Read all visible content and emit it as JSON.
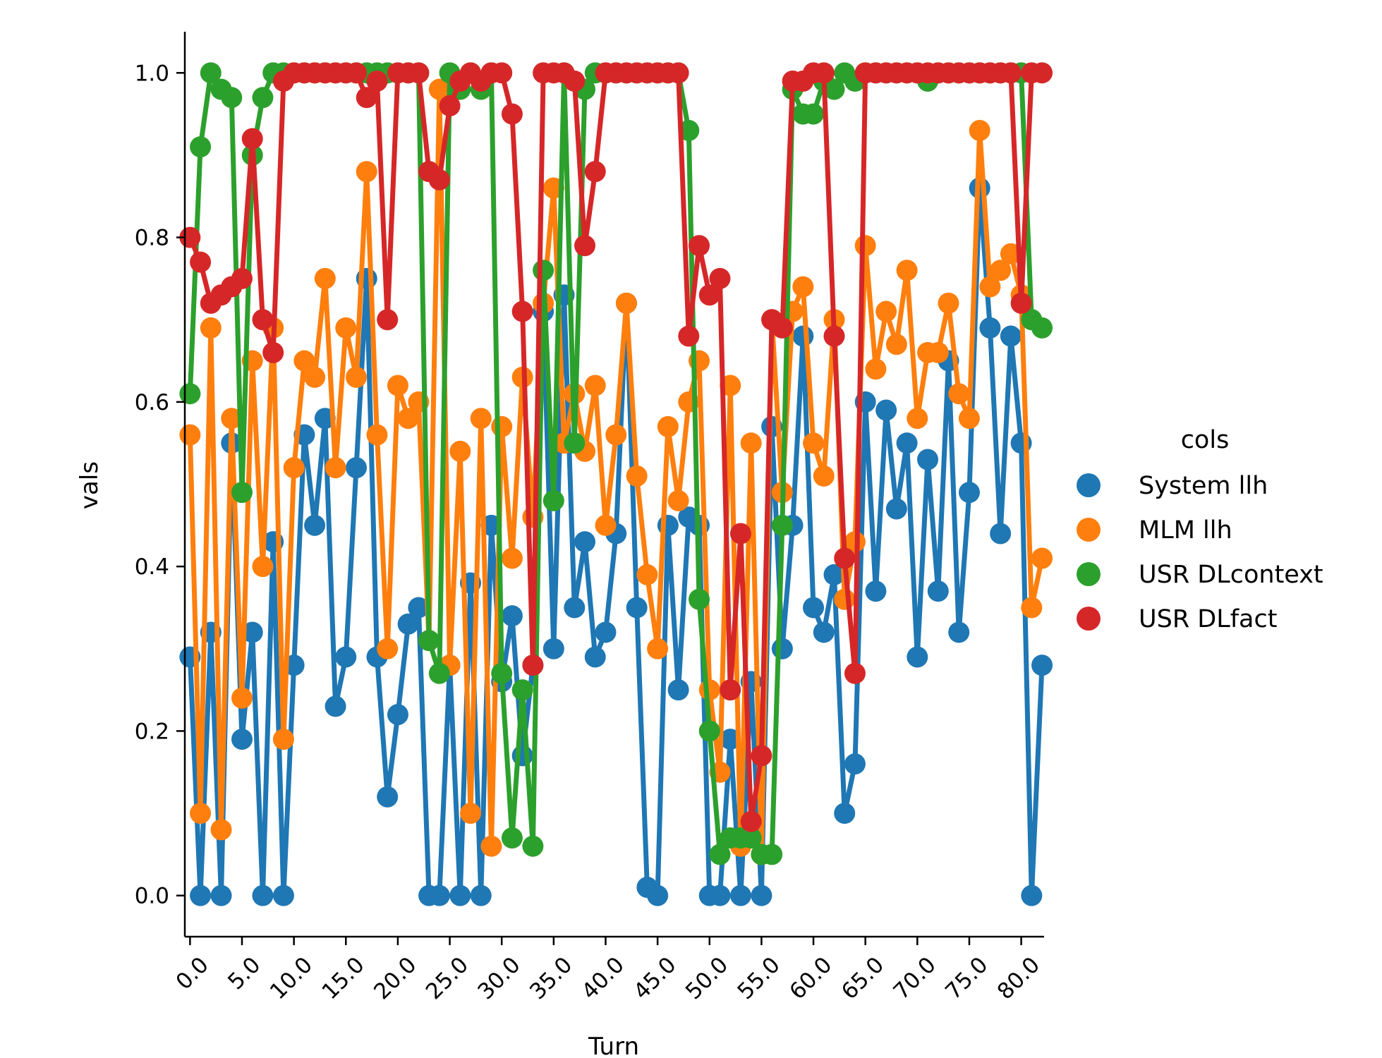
{
  "chart_data": {
    "type": "line",
    "xlabel": "Turn",
    "ylabel": "vals",
    "legend_title": "cols",
    "legend_placement": "right",
    "xlim": [
      -0.5,
      82.2
    ],
    "ylim": [
      -0.05,
      1.05
    ],
    "x_ticks": [
      0,
      5,
      10,
      15,
      20,
      25,
      30,
      35,
      40,
      45,
      50,
      55,
      60,
      65,
      70,
      75,
      80
    ],
    "x_tick_labels": [
      "0.0",
      "5.0",
      "10.0",
      "15.0",
      "20.0",
      "25.0",
      "30.0",
      "35.0",
      "40.0",
      "45.0",
      "50.0",
      "55.0",
      "60.0",
      "65.0",
      "70.0",
      "75.0",
      "80.0"
    ],
    "y_ticks": [
      0.0,
      0.2,
      0.4,
      0.6,
      0.8,
      1.0
    ],
    "y_tick_labels": [
      "0.0",
      "0.2",
      "0.4",
      "0.6",
      "0.8",
      "1.0"
    ],
    "grid": false,
    "series": [
      {
        "name": "System llh",
        "color": "#1f77b4",
        "values": [
          0.29,
          0.0,
          0.32,
          0.0,
          0.55,
          0.19,
          0.32,
          0.0,
          0.43,
          0.0,
          0.28,
          0.56,
          0.45,
          0.58,
          0.23,
          0.29,
          0.52,
          0.75,
          0.29,
          0.12,
          0.22,
          0.33,
          0.35,
          0.0,
          0.0,
          0.28,
          0.0,
          0.38,
          0.0,
          0.45,
          0.26,
          0.34,
          0.17,
          0.28,
          0.71,
          0.3,
          0.73,
          0.35,
          0.43,
          0.29,
          0.32,
          0.44,
          0.72,
          0.35,
          0.01,
          0.0,
          0.45,
          0.25,
          0.46,
          0.45,
          0.0,
          0.0,
          0.19,
          0.0,
          0.26,
          0.0,
          0.57,
          0.3,
          0.45,
          0.68,
          0.35,
          0.32,
          0.39,
          0.1,
          0.16,
          0.6,
          0.37,
          0.59,
          0.47,
          0.55,
          0.29,
          0.53,
          0.37,
          0.65,
          0.32,
          0.49,
          0.86,
          0.69,
          0.44,
          0.68,
          0.55,
          0.0,
          0.28
        ]
      },
      {
        "name": "MLM llh",
        "color": "#ff7f0e",
        "values": [
          0.56,
          0.1,
          0.69,
          0.08,
          0.58,
          0.24,
          0.65,
          0.4,
          0.69,
          0.19,
          0.52,
          0.65,
          0.63,
          0.75,
          0.52,
          0.69,
          0.63,
          0.88,
          0.56,
          0.3,
          0.62,
          0.58,
          0.6,
          0.31,
          0.98,
          0.28,
          0.54,
          0.1,
          0.58,
          0.06,
          0.57,
          0.41,
          0.63,
          0.46,
          0.72,
          0.86,
          0.55,
          0.61,
          0.54,
          0.62,
          0.45,
          0.56,
          0.72,
          0.51,
          0.39,
          0.3,
          0.57,
          0.48,
          0.6,
          0.65,
          0.25,
          0.15,
          0.62,
          0.06,
          0.55,
          0.05,
          0.7,
          0.49,
          0.71,
          0.74,
          0.55,
          0.51,
          0.7,
          0.36,
          0.43,
          0.79,
          0.64,
          0.71,
          0.67,
          0.76,
          0.58,
          0.66,
          0.66,
          0.72,
          0.61,
          0.58,
          0.93,
          0.74,
          0.76,
          0.78,
          0.73,
          0.35,
          0.41
        ]
      },
      {
        "name": "USR DLcontext",
        "color": "#2ca02c",
        "values": [
          0.61,
          0.91,
          1.0,
          0.98,
          0.97,
          0.49,
          0.9,
          0.97,
          1.0,
          1.0,
          1.0,
          1.0,
          1.0,
          1.0,
          1.0,
          1.0,
          1.0,
          1.0,
          1.0,
          1.0,
          1.0,
          1.0,
          1.0,
          0.31,
          0.27,
          1.0,
          0.98,
          1.0,
          0.98,
          1.0,
          0.27,
          0.07,
          0.25,
          0.06,
          0.76,
          0.48,
          1.0,
          0.55,
          0.98,
          1.0,
          1.0,
          1.0,
          1.0,
          1.0,
          1.0,
          1.0,
          1.0,
          1.0,
          0.93,
          0.36,
          0.2,
          0.05,
          0.07,
          0.07,
          0.07,
          0.05,
          0.05,
          0.45,
          0.98,
          0.95,
          0.95,
          0.99,
          0.98,
          1.0,
          0.99,
          1.0,
          1.0,
          1.0,
          1.0,
          1.0,
          1.0,
          0.99,
          1.0,
          1.0,
          1.0,
          1.0,
          1.0,
          1.0,
          1.0,
          1.0,
          1.0,
          0.7,
          0.69
        ]
      },
      {
        "name": "USR DLfact",
        "color": "#d62728",
        "values": [
          0.8,
          0.77,
          0.72,
          0.73,
          0.74,
          0.75,
          0.92,
          0.7,
          0.66,
          0.99,
          1.0,
          1.0,
          1.0,
          1.0,
          1.0,
          1.0,
          1.0,
          0.97,
          0.99,
          0.7,
          1.0,
          1.0,
          1.0,
          0.88,
          0.87,
          0.96,
          0.99,
          1.0,
          0.99,
          1.0,
          1.0,
          0.95,
          0.71,
          0.28,
          1.0,
          1.0,
          1.0,
          0.99,
          0.79,
          0.88,
          1.0,
          1.0,
          1.0,
          1.0,
          1.0,
          1.0,
          1.0,
          1.0,
          0.68,
          0.79,
          0.73,
          0.75,
          0.25,
          0.44,
          0.09,
          0.17,
          0.7,
          0.69,
          0.99,
          0.99,
          1.0,
          1.0,
          0.68,
          0.41,
          0.27,
          1.0,
          1.0,
          1.0,
          1.0,
          1.0,
          1.0,
          1.0,
          1.0,
          1.0,
          1.0,
          1.0,
          1.0,
          1.0,
          1.0,
          1.0,
          0.72,
          1.0,
          1.0
        ]
      }
    ]
  }
}
